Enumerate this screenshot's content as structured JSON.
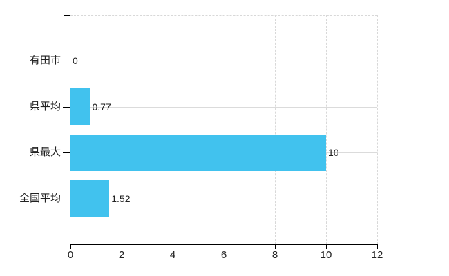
{
  "chart_data": {
    "type": "bar",
    "orientation": "horizontal",
    "title": "",
    "xlabel": "",
    "ylabel": "",
    "categories": [
      "有田市",
      "県平均",
      "県最大",
      "全国平均"
    ],
    "values": [
      0,
      0.77,
      10,
      1.52
    ],
    "value_labels": [
      "0",
      "0.77",
      "10",
      "1.52"
    ],
    "xlim": [
      0,
      12
    ],
    "xticks": [
      0,
      2,
      4,
      6,
      8,
      10,
      12
    ],
    "xtick_labels": [
      "0",
      "2",
      "4",
      "6",
      "8",
      "10",
      "12"
    ],
    "grid": true,
    "legend": "none"
  },
  "colors": {
    "bar": "#41C2EE",
    "grid": "#DBDBDB",
    "axis": "#000000",
    "text": "#222222",
    "background": "#FFFFFF"
  }
}
